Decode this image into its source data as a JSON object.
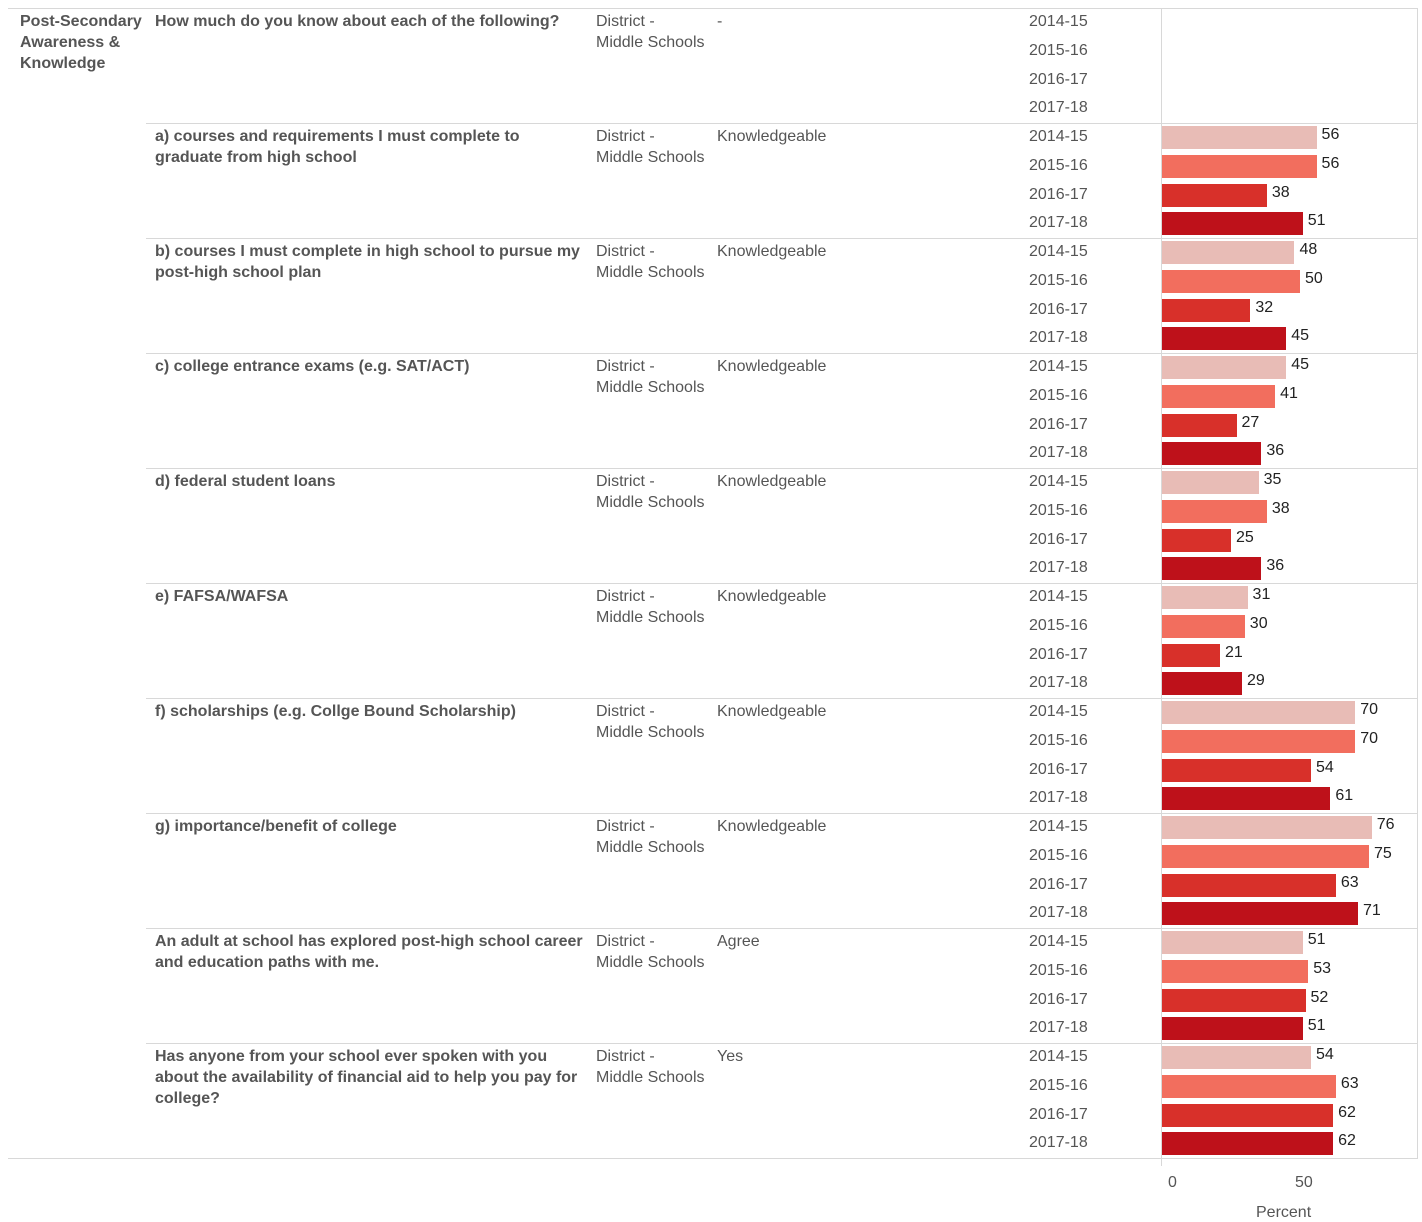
{
  "category": "Post-Secondary Awareness & Knowledge",
  "colors": {
    "2014-15": "#e8bcb6",
    "2015-16": "#f26e5e",
    "2016-17": "#d8302a",
    "2017-18": "#be111a"
  },
  "chart_data": {
    "type": "bar",
    "orientation": "horizontal",
    "xlabel": "Percent",
    "xlim": [
      0,
      92
    ],
    "xticks": [
      0,
      50
    ],
    "years": [
      "2014-15",
      "2015-16",
      "2016-17",
      "2017-18"
    ],
    "rows": [
      {
        "question": "How much do you know about each of the following?",
        "group": "District - Middle Schools",
        "response": "-",
        "values": [
          null,
          null,
          null,
          null
        ]
      },
      {
        "question": "a) courses and requirements I must complete to graduate from high school",
        "group": "District - Middle Schools",
        "response": "Knowledgeable",
        "values": [
          56,
          56,
          38,
          51
        ]
      },
      {
        "question": "b) courses I must complete in high school to pursue my post-high school plan",
        "group": "District - Middle Schools",
        "response": "Knowledgeable",
        "values": [
          48,
          50,
          32,
          45
        ]
      },
      {
        "question": "c) college entrance exams (e.g. SAT/ACT)",
        "group": "District - Middle Schools",
        "response": "Knowledgeable",
        "values": [
          45,
          41,
          27,
          36
        ]
      },
      {
        "question": "d) federal student loans",
        "group": "District - Middle Schools",
        "response": "Knowledgeable",
        "values": [
          35,
          38,
          25,
          36
        ]
      },
      {
        "question": "e) FAFSA/WAFSA",
        "group": "District - Middle Schools",
        "response": "Knowledgeable",
        "values": [
          31,
          30,
          21,
          29
        ]
      },
      {
        "question": "f) scholarships (e.g. Collge Bound Scholarship)",
        "group": "District - Middle Schools",
        "response": "Knowledgeable",
        "values": [
          70,
          70,
          54,
          61
        ]
      },
      {
        "question": "g) importance/benefit of college",
        "group": "District - Middle Schools",
        "response": "Knowledgeable",
        "values": [
          76,
          75,
          63,
          71
        ]
      },
      {
        "question": "An adult at school has explored post-high school career and education paths with me.",
        "group": "District - Middle Schools",
        "response": "Agree",
        "values": [
          51,
          53,
          52,
          51
        ]
      },
      {
        "question": "Has anyone from your school ever spoken with you about the availability of financial aid to help you pay for college?",
        "group": "District - Middle Schools",
        "response": "Yes",
        "values": [
          54,
          63,
          62,
          62
        ]
      }
    ]
  }
}
